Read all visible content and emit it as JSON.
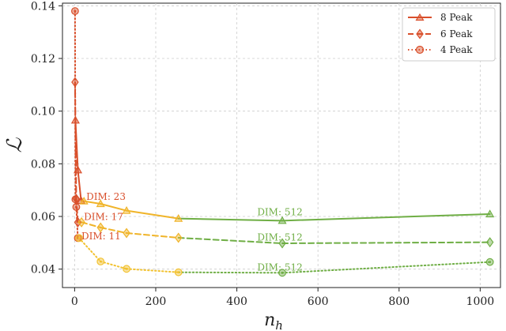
{
  "chart_data": {
    "type": "line",
    "xlabel": "n_h",
    "ylabel": "ℒ",
    "xlim": [
      -30,
      1050
    ],
    "ylim": [
      0.033,
      0.141
    ],
    "xticks": [
      0,
      200,
      400,
      600,
      800,
      1000
    ],
    "yticks": [
      0.04,
      0.06,
      0.08,
      0.1,
      0.12,
      0.14
    ],
    "xtick_labels": [
      "0",
      "200",
      "400",
      "600",
      "800",
      "1000"
    ],
    "ytick_labels": [
      "0.04",
      "0.06",
      "0.08",
      "0.10",
      "0.12",
      "0.14"
    ],
    "grid": true,
    "legend_position": "top-right",
    "legend": [
      {
        "label": "8 Peak",
        "marker": "triangle",
        "dash": "solid"
      },
      {
        "label": "6 Peak",
        "marker": "diamond",
        "dash": "dashed"
      },
      {
        "label": "4 Peak",
        "marker": "circle",
        "dash": "dotted"
      }
    ],
    "colors": {
      "red": "#d94f2b",
      "orange": "#f0b429",
      "yellow": "#f2c230",
      "green": "#6fae45",
      "grid": "#cccccc",
      "axis": "#222222"
    },
    "series": [
      {
        "name": "8 Peak",
        "marker": "triangle",
        "dash": "solid",
        "points": [
          {
            "x": 2,
            "y": 0.0965,
            "c": "red"
          },
          {
            "x": 8,
            "y": 0.0776,
            "c": "red"
          },
          {
            "x": 16,
            "y": 0.066,
            "c": "red"
          },
          {
            "x": 23,
            "y": 0.0658,
            "c": "orange"
          },
          {
            "x": 64,
            "y": 0.0648,
            "c": "orange"
          },
          {
            "x": 128,
            "y": 0.0622,
            "c": "orange"
          },
          {
            "x": 256,
            "y": 0.0592,
            "c": "orange"
          },
          {
            "x": 512,
            "y": 0.0584,
            "c": "green"
          },
          {
            "x": 1024,
            "y": 0.0609,
            "c": "green"
          }
        ]
      },
      {
        "name": "6 Peak",
        "marker": "diamond",
        "dash": "dashed",
        "points": [
          {
            "x": 1,
            "y": 0.111,
            "c": "red"
          },
          {
            "x": 4,
            "y": 0.0667,
            "c": "red"
          },
          {
            "x": 8,
            "y": 0.0578,
            "c": "red"
          },
          {
            "x": 17,
            "y": 0.0578,
            "c": "orange"
          },
          {
            "x": 64,
            "y": 0.0558,
            "c": "orange"
          },
          {
            "x": 128,
            "y": 0.0537,
            "c": "orange"
          },
          {
            "x": 256,
            "y": 0.0519,
            "c": "orange"
          },
          {
            "x": 512,
            "y": 0.0498,
            "c": "green"
          },
          {
            "x": 1024,
            "y": 0.0502,
            "c": "green"
          }
        ]
      },
      {
        "name": "4 Peak",
        "marker": "circle",
        "dash": "dotted",
        "points": [
          {
            "x": 1,
            "y": 0.138,
            "c": "red"
          },
          {
            "x": 2,
            "y": 0.0665,
            "c": "red"
          },
          {
            "x": 4,
            "y": 0.0636,
            "c": "red"
          },
          {
            "x": 8,
            "y": 0.0518,
            "c": "red"
          },
          {
            "x": 11,
            "y": 0.0518,
            "c": "yellow"
          },
          {
            "x": 64,
            "y": 0.0429,
            "c": "yellow"
          },
          {
            "x": 128,
            "y": 0.0401,
            "c": "yellow"
          },
          {
            "x": 256,
            "y": 0.0388,
            "c": "yellow"
          },
          {
            "x": 512,
            "y": 0.0386,
            "c": "green"
          },
          {
            "x": 1024,
            "y": 0.0427,
            "c": "green"
          }
        ]
      }
    ],
    "annotations": [
      {
        "text": "DIM: 23",
        "x": 23,
        "y": 0.0675,
        "c": "red"
      },
      {
        "text": "DIM: 17",
        "x": 17,
        "y": 0.0598,
        "c": "red"
      },
      {
        "text": "DIM: 11",
        "x": 11,
        "y": 0.0525,
        "c": "red"
      },
      {
        "text": "DIM: 512",
        "x": 512,
        "y": 0.0617,
        "c": "green"
      },
      {
        "text": "DIM: 512",
        "x": 512,
        "y": 0.0521,
        "c": "green"
      },
      {
        "text": "DIM: 512",
        "x": 512,
        "y": 0.0406,
        "c": "green"
      }
    ]
  }
}
